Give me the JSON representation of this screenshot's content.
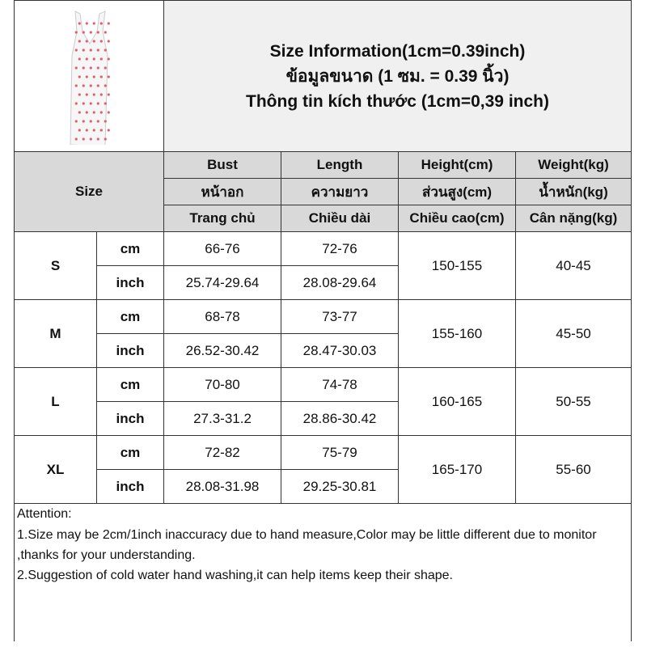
{
  "header": {
    "title_lines": [
      "Size Information(1cm=0.39inch)",
      "ข้อมูลขนาด (1 ซม. = 0.39 นิ้ว)",
      "Thông tin kích thước (1cm=0,39 inch)"
    ],
    "size_label": "Size",
    "columns": [
      [
        "Bust",
        "หน้าอก",
        "Trang chủ"
      ],
      [
        "Length",
        "ความยาว",
        "Chiều dài"
      ],
      [
        "Height(cm)",
        "ส่วนสูง(cm)",
        "Chiều cao(cm)"
      ],
      [
        "Weight(kg)",
        "น้ำหนัก(kg)",
        "Cân nặng(kg)"
      ]
    ]
  },
  "rows": [
    {
      "size": "S",
      "cm": [
        "66-76",
        "72-76"
      ],
      "inch": [
        "25.74-29.64",
        "28.08-29.64"
      ],
      "height": "150-155",
      "weight": "40-45"
    },
    {
      "size": "M",
      "cm": [
        "68-78",
        "73-77"
      ],
      "inch": [
        "26.52-30.42",
        "28.47-30.03"
      ],
      "height": "155-160",
      "weight": "45-50"
    },
    {
      "size": "L",
      "cm": [
        "70-80",
        "74-78"
      ],
      "inch": [
        "27.3-31.2",
        "28.86-30.42"
      ],
      "height": "160-165",
      "weight": "50-55"
    },
    {
      "size": "XL",
      "cm": [
        "72-82",
        "75-79"
      ],
      "inch": [
        "28.08-31.98",
        "29.25-30.81"
      ],
      "height": "165-170",
      "weight": "55-60"
    }
  ],
  "units": {
    "cm": "cm",
    "inch": "inch"
  },
  "notes": [
    "Attention:",
    "1.Size may be 2cm/1inch inaccuracy due to hand measure,Color may be little different due to monitor ,thanks for your understanding.",
    "2.Suggestion of cold water hand washing,it can help items keep their shape."
  ]
}
